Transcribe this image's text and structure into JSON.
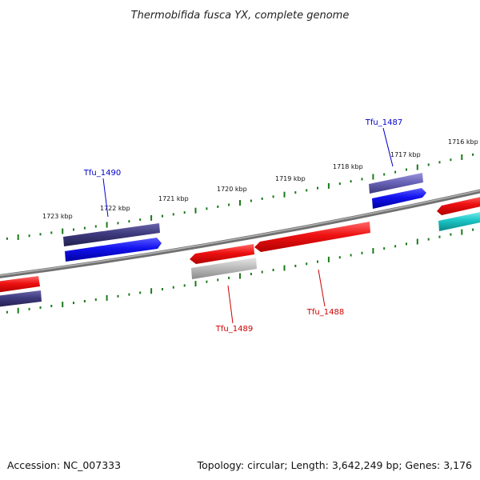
{
  "title": "Thermobifida fusca YX, complete genome",
  "footer": {
    "accession": "Accession: NC_007333",
    "summary": "Topology: circular; Length: 3,642,249 bp; Genes: 3,176"
  },
  "scale_labels": [
    "1716 kbp",
    "1717 kbp",
    "1718 kbp",
    "1719 kbp",
    "1720 kbp",
    "1721 kbp",
    "1722 kbp",
    "1723 kbp"
  ],
  "gene_labels": [
    {
      "id": "Tfu_1487",
      "color": "#0000cc"
    },
    {
      "id": "Tfu_1490",
      "color": "#0000cc"
    },
    {
      "id": "Tfu_1489",
      "color": "#cc0000"
    },
    {
      "id": "Tfu_1488",
      "color": "#cc0000"
    }
  ],
  "colors": {
    "backbone": "#808080",
    "ticks": "#1a7a1a",
    "cds_red": "#ee1111",
    "cds_blue": "#1111ee",
    "cds_purple": "#5b55a8",
    "cds_dark_purple": "#3e3a7e",
    "cds_gray": "#b8b8b8",
    "cds_cyan": "#1ec8c8"
  }
}
